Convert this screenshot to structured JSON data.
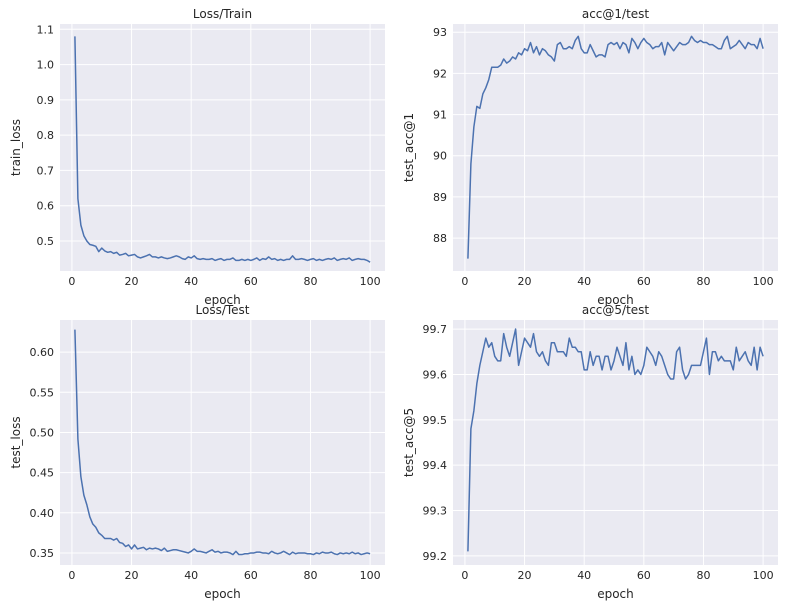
{
  "chart_data": [
    {
      "type": "line",
      "title": "Loss/Train",
      "xlabel": "epoch",
      "ylabel": "train_loss",
      "xlim": [
        -4,
        105
      ],
      "ylim": [
        0.415,
        1.115
      ],
      "xticks": [
        "0",
        "20",
        "40",
        "60",
        "80",
        "100"
      ],
      "xtick_values": [
        0,
        20,
        40,
        60,
        80,
        100
      ],
      "yticks": [
        "0.5",
        "0.6",
        "0.7",
        "0.8",
        "0.9",
        "1.0",
        "1.1"
      ],
      "ytick_values": [
        0.5,
        0.6,
        0.7,
        0.8,
        0.9,
        1.0,
        1.1
      ],
      "x": [
        1,
        2,
        3,
        4,
        5,
        6,
        7,
        8,
        9,
        10,
        11,
        12,
        13,
        14,
        15,
        16,
        17,
        18,
        19,
        20,
        21,
        22,
        23,
        24,
        25,
        26,
        27,
        28,
        29,
        30,
        31,
        32,
        33,
        34,
        35,
        36,
        37,
        38,
        39,
        40,
        41,
        42,
        43,
        44,
        45,
        46,
        47,
        48,
        49,
        50,
        51,
        52,
        53,
        54,
        55,
        56,
        57,
        58,
        59,
        60,
        61,
        62,
        63,
        64,
        65,
        66,
        67,
        68,
        69,
        70,
        71,
        72,
        73,
        74,
        75,
        76,
        77,
        78,
        79,
        80,
        81,
        82,
        83,
        84,
        85,
        86,
        87,
        88,
        89,
        90,
        91,
        92,
        93,
        94,
        95,
        96,
        97,
        98,
        99,
        100
      ],
      "series": [
        {
          "values": [
            1.08,
            0.62,
            0.545,
            0.515,
            0.5,
            0.49,
            0.488,
            0.485,
            0.47,
            0.48,
            0.472,
            0.468,
            0.47,
            0.465,
            0.468,
            0.46,
            0.462,
            0.465,
            0.458,
            0.46,
            0.462,
            0.455,
            0.452,
            0.455,
            0.458,
            0.462,
            0.455,
            0.455,
            0.452,
            0.455,
            0.452,
            0.45,
            0.452,
            0.455,
            0.458,
            0.455,
            0.45,
            0.448,
            0.455,
            0.452,
            0.458,
            0.45,
            0.448,
            0.45,
            0.448,
            0.448,
            0.45,
            0.445,
            0.448,
            0.45,
            0.445,
            0.448,
            0.448,
            0.452,
            0.445,
            0.445,
            0.448,
            0.445,
            0.448,
            0.445,
            0.448,
            0.452,
            0.445,
            0.45,
            0.448,
            0.455,
            0.448,
            0.45,
            0.445,
            0.448,
            0.445,
            0.448,
            0.448,
            0.458,
            0.448,
            0.448,
            0.45,
            0.448,
            0.445,
            0.448,
            0.45,
            0.445,
            0.448,
            0.445,
            0.448,
            0.45,
            0.448,
            0.452,
            0.445,
            0.448,
            0.45,
            0.448,
            0.452,
            0.445,
            0.448,
            0.45,
            0.448,
            0.448,
            0.445,
            0.44
          ],
          "color": "#4c72b0"
        }
      ]
    },
    {
      "type": "line",
      "title": "acc@1/test",
      "xlabel": "epoch",
      "ylabel": "test_acc@1",
      "xlim": [
        -4,
        105
      ],
      "ylim": [
        87.2,
        93.2
      ],
      "xticks": [
        "0",
        "20",
        "40",
        "60",
        "80",
        "100"
      ],
      "xtick_values": [
        0,
        20,
        40,
        60,
        80,
        100
      ],
      "yticks": [
        "88",
        "89",
        "90",
        "91",
        "92",
        "93"
      ],
      "ytick_values": [
        88,
        89,
        90,
        91,
        92,
        93
      ],
      "x": [
        1,
        2,
        3,
        4,
        5,
        6,
        7,
        8,
        9,
        10,
        11,
        12,
        13,
        14,
        15,
        16,
        17,
        18,
        19,
        20,
        21,
        22,
        23,
        24,
        25,
        26,
        27,
        28,
        29,
        30,
        31,
        32,
        33,
        34,
        35,
        36,
        37,
        38,
        39,
        40,
        41,
        42,
        43,
        44,
        45,
        46,
        47,
        48,
        49,
        50,
        51,
        52,
        53,
        54,
        55,
        56,
        57,
        58,
        59,
        60,
        61,
        62,
        63,
        64,
        65,
        66,
        67,
        68,
        69,
        70,
        71,
        72,
        73,
        74,
        75,
        76,
        77,
        78,
        79,
        80,
        81,
        82,
        83,
        84,
        85,
        86,
        87,
        88,
        89,
        90,
        91,
        92,
        93,
        94,
        95,
        96,
        97,
        98,
        99,
        100
      ],
      "series": [
        {
          "values": [
            87.5,
            89.8,
            90.7,
            91.2,
            91.15,
            91.5,
            91.65,
            91.85,
            92.15,
            92.15,
            92.15,
            92.2,
            92.35,
            92.25,
            92.3,
            92.4,
            92.35,
            92.5,
            92.45,
            92.6,
            92.55,
            92.75,
            92.5,
            92.65,
            92.45,
            92.6,
            92.55,
            92.45,
            92.4,
            92.3,
            92.7,
            92.75,
            92.6,
            92.6,
            92.65,
            92.6,
            92.8,
            92.9,
            92.6,
            92.5,
            92.5,
            92.7,
            92.55,
            92.4,
            92.45,
            92.45,
            92.4,
            92.7,
            92.75,
            92.7,
            92.75,
            92.6,
            92.75,
            92.7,
            92.5,
            92.85,
            92.75,
            92.6,
            92.75,
            92.85,
            92.75,
            92.7,
            92.6,
            92.65,
            92.65,
            92.75,
            92.45,
            92.75,
            92.65,
            92.55,
            92.65,
            92.75,
            92.7,
            92.7,
            92.75,
            92.9,
            92.8,
            92.75,
            92.8,
            92.75,
            92.75,
            92.7,
            92.7,
            92.65,
            92.6,
            92.6,
            92.8,
            92.9,
            92.6,
            92.65,
            92.7,
            92.8,
            92.7,
            92.6,
            92.75,
            92.7,
            92.7,
            92.6,
            92.85,
            92.6
          ],
          "color": "#4c72b0"
        }
      ]
    },
    {
      "type": "line",
      "title": "Loss/Test",
      "xlabel": "epoch",
      "ylabel": "test_loss",
      "xlim": [
        -4,
        105
      ],
      "ylim": [
        0.335,
        0.64
      ],
      "xticks": [
        "0",
        "20",
        "40",
        "60",
        "80",
        "100"
      ],
      "xtick_values": [
        0,
        20,
        40,
        60,
        80,
        100
      ],
      "yticks": [
        "0.35",
        "0.40",
        "0.45",
        "0.50",
        "0.55",
        "0.60"
      ],
      "ytick_values": [
        0.35,
        0.4,
        0.45,
        0.5,
        0.55,
        0.6
      ],
      "x": [
        1,
        2,
        3,
        4,
        5,
        6,
        7,
        8,
        9,
        10,
        11,
        12,
        13,
        14,
        15,
        16,
        17,
        18,
        19,
        20,
        21,
        22,
        23,
        24,
        25,
        26,
        27,
        28,
        29,
        30,
        31,
        32,
        33,
        34,
        35,
        36,
        37,
        38,
        39,
        40,
        41,
        42,
        43,
        44,
        45,
        46,
        47,
        48,
        49,
        50,
        51,
        52,
        53,
        54,
        55,
        56,
        57,
        58,
        59,
        60,
        61,
        62,
        63,
        64,
        65,
        66,
        67,
        68,
        69,
        70,
        71,
        72,
        73,
        74,
        75,
        76,
        77,
        78,
        79,
        80,
        81,
        82,
        83,
        84,
        85,
        86,
        87,
        88,
        89,
        90,
        91,
        92,
        93,
        94,
        95,
        96,
        97,
        98,
        99,
        100
      ],
      "series": [
        {
          "values": [
            0.628,
            0.492,
            0.445,
            0.422,
            0.41,
            0.395,
            0.386,
            0.382,
            0.375,
            0.372,
            0.368,
            0.368,
            0.368,
            0.366,
            0.368,
            0.363,
            0.362,
            0.358,
            0.36,
            0.355,
            0.36,
            0.355,
            0.356,
            0.357,
            0.354,
            0.356,
            0.355,
            0.356,
            0.355,
            0.353,
            0.356,
            0.352,
            0.353,
            0.354,
            0.354,
            0.353,
            0.352,
            0.351,
            0.35,
            0.352,
            0.355,
            0.352,
            0.352,
            0.351,
            0.35,
            0.352,
            0.354,
            0.351,
            0.352,
            0.35,
            0.351,
            0.351,
            0.35,
            0.348,
            0.352,
            0.348,
            0.348,
            0.349,
            0.349,
            0.35,
            0.35,
            0.351,
            0.351,
            0.35,
            0.35,
            0.349,
            0.352,
            0.35,
            0.349,
            0.35,
            0.352,
            0.35,
            0.348,
            0.351,
            0.349,
            0.35,
            0.35,
            0.35,
            0.349,
            0.349,
            0.348,
            0.35,
            0.349,
            0.351,
            0.35,
            0.35,
            0.351,
            0.349,
            0.348,
            0.35,
            0.349,
            0.35,
            0.349,
            0.351,
            0.349,
            0.35,
            0.348,
            0.349,
            0.35,
            0.349
          ],
          "color": "#4c72b0"
        }
      ]
    },
    {
      "type": "line",
      "title": "acc@5/test",
      "xlabel": "epoch",
      "ylabel": "test_acc@5",
      "xlim": [
        -4,
        105
      ],
      "ylim": [
        99.18,
        99.72
      ],
      "xticks": [
        "0",
        "20",
        "40",
        "60",
        "80",
        "100"
      ],
      "xtick_values": [
        0,
        20,
        40,
        60,
        80,
        100
      ],
      "yticks": [
        "99.2",
        "99.3",
        "99.4",
        "99.5",
        "99.6",
        "99.7"
      ],
      "ytick_values": [
        99.2,
        99.3,
        99.4,
        99.5,
        99.6,
        99.7
      ],
      "x": [
        1,
        2,
        3,
        4,
        5,
        6,
        7,
        8,
        9,
        10,
        11,
        12,
        13,
        14,
        15,
        16,
        17,
        18,
        19,
        20,
        21,
        22,
        23,
        24,
        25,
        26,
        27,
        28,
        29,
        30,
        31,
        32,
        33,
        34,
        35,
        36,
        37,
        38,
        39,
        40,
        41,
        42,
        43,
        44,
        45,
        46,
        47,
        48,
        49,
        50,
        51,
        52,
        53,
        54,
        55,
        56,
        57,
        58,
        59,
        60,
        61,
        62,
        63,
        64,
        65,
        66,
        67,
        68,
        69,
        70,
        71,
        72,
        73,
        74,
        75,
        76,
        77,
        78,
        79,
        80,
        81,
        82,
        83,
        84,
        85,
        86,
        87,
        88,
        89,
        90,
        91,
        92,
        93,
        94,
        95,
        96,
        97,
        98,
        99,
        100
      ],
      "series": [
        {
          "values": [
            99.21,
            99.48,
            99.52,
            99.58,
            99.62,
            99.65,
            99.68,
            99.66,
            99.67,
            99.64,
            99.63,
            99.63,
            99.69,
            99.66,
            99.64,
            99.67,
            99.7,
            99.62,
            99.65,
            99.68,
            99.67,
            99.66,
            99.69,
            99.65,
            99.64,
            99.65,
            99.63,
            99.62,
            99.67,
            99.67,
            99.65,
            99.65,
            99.65,
            99.64,
            99.68,
            99.66,
            99.66,
            99.65,
            99.65,
            99.61,
            99.61,
            99.65,
            99.62,
            99.64,
            99.64,
            99.61,
            99.64,
            99.64,
            99.61,
            99.63,
            99.66,
            99.64,
            99.62,
            99.67,
            99.61,
            99.64,
            99.6,
            99.61,
            99.6,
            99.62,
            99.66,
            99.65,
            99.64,
            99.62,
            99.65,
            99.64,
            99.62,
            99.6,
            99.59,
            99.59,
            99.65,
            99.66,
            99.61,
            99.59,
            99.6,
            99.62,
            99.62,
            99.62,
            99.62,
            99.65,
            99.68,
            99.6,
            99.65,
            99.65,
            99.63,
            99.64,
            99.63,
            99.63,
            99.63,
            99.61,
            99.66,
            99.63,
            99.64,
            99.65,
            99.63,
            99.62,
            99.66,
            99.61,
            99.66,
            99.64
          ],
          "color": "#4c72b0"
        }
      ]
    }
  ]
}
